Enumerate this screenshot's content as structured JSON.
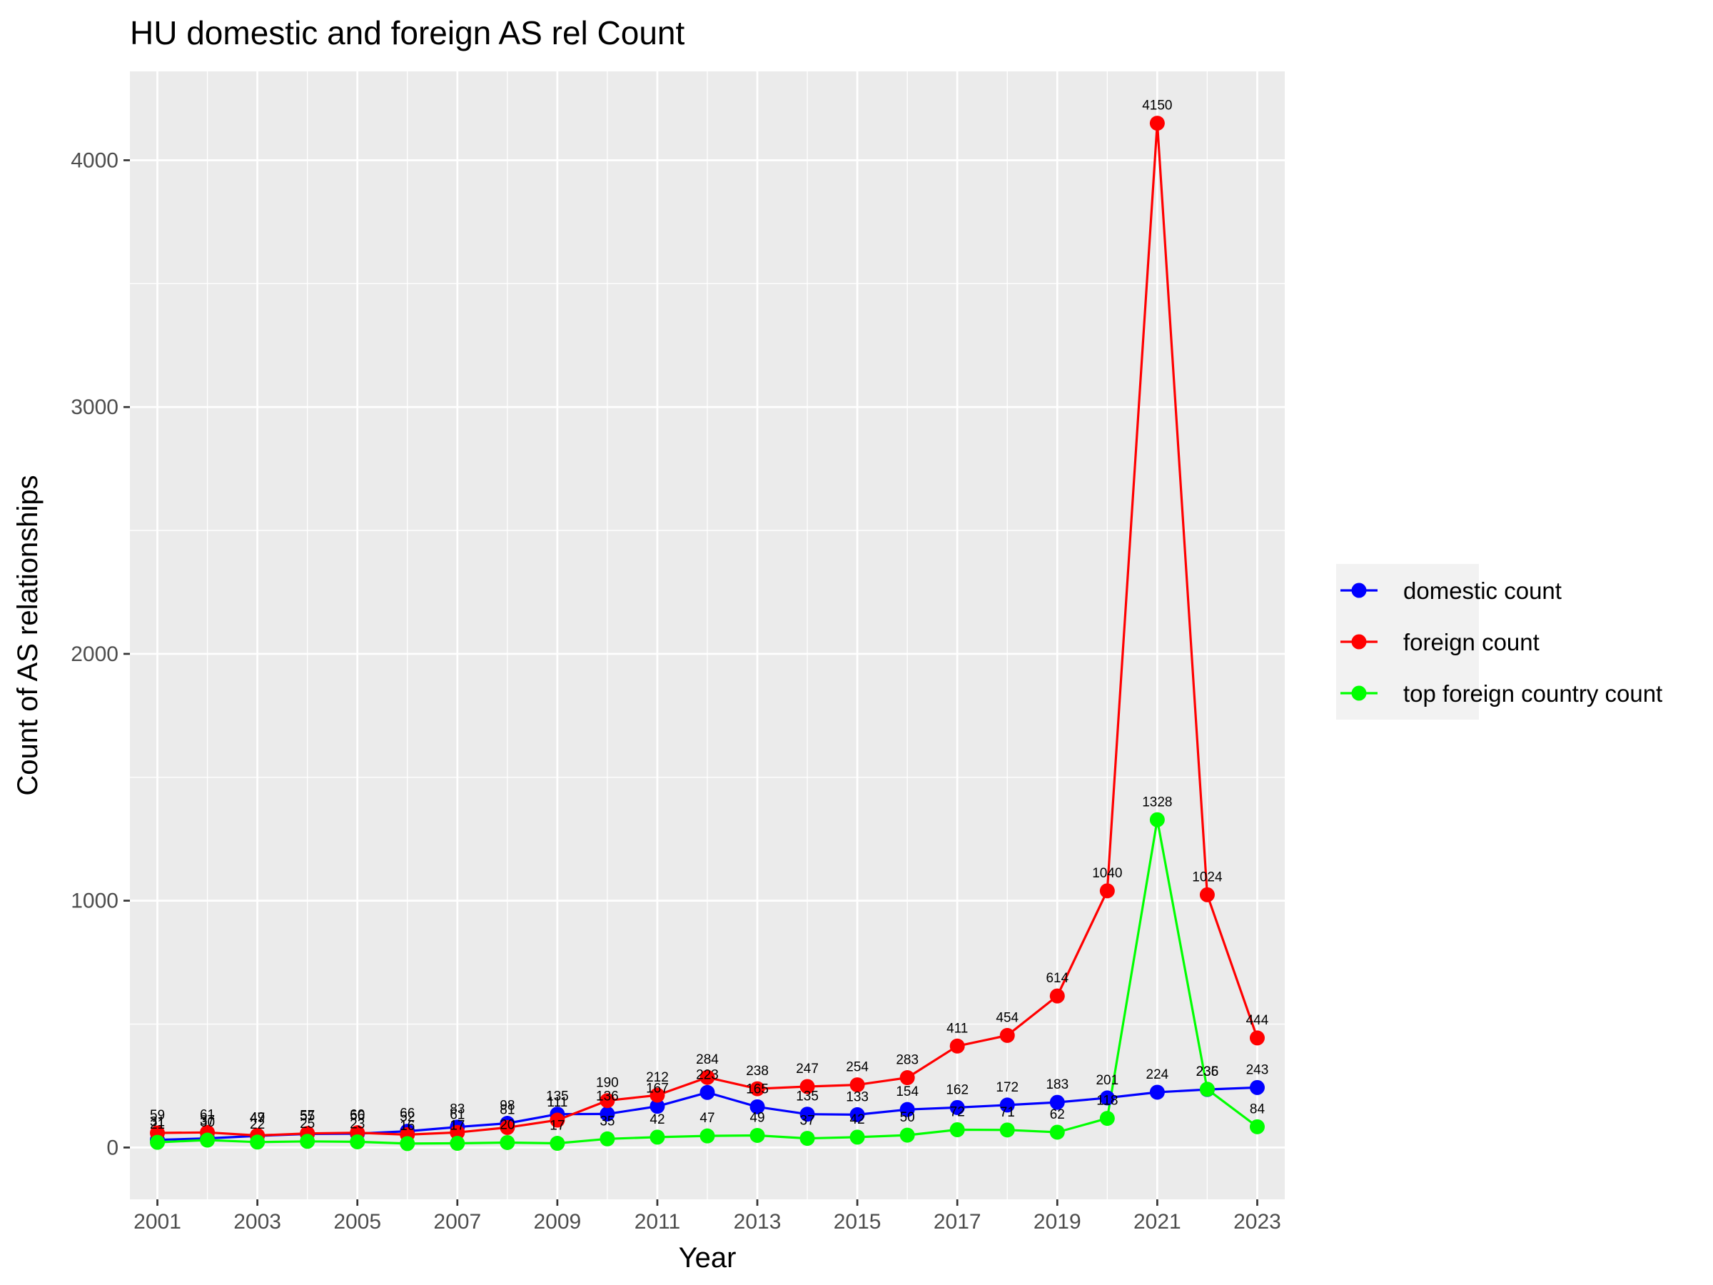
{
  "chart_data": {
    "type": "line",
    "title": "HU domestic and foreign AS rel Count",
    "xlabel": "Year",
    "ylabel": "Count of AS relationships",
    "x": [
      2001,
      2002,
      2003,
      2004,
      2005,
      2006,
      2007,
      2008,
      2009,
      2010,
      2011,
      2012,
      2013,
      2014,
      2015,
      2016,
      2017,
      2018,
      2019,
      2020,
      2021,
      2022,
      2023
    ],
    "x_ticks": [
      "2001",
      "2003",
      "2005",
      "2007",
      "2009",
      "2011",
      "2013",
      "2015",
      "2017",
      "2019",
      "2021",
      "2023"
    ],
    "y_ticks": [
      "0",
      "1000",
      "2000",
      "3000",
      "4000"
    ],
    "xlim": [
      2000.45,
      2023.55
    ],
    "ylim": [
      -210,
      4360
    ],
    "grid": true,
    "legend_position": "right",
    "series": [
      {
        "name": "domestic count",
        "color": "#0000FF",
        "values": [
          31,
          37,
          47,
          55,
          56,
          66,
          83,
          98,
          135,
          136,
          167,
          223,
          165,
          135,
          133,
          154,
          162,
          172,
          183,
          201,
          224,
          235,
          243
        ]
      },
      {
        "name": "foreign count",
        "color": "#FF0000",
        "values": [
          59,
          61,
          49,
          57,
          60,
          52,
          61,
          81,
          111,
          190,
          212,
          284,
          238,
          247,
          254,
          283,
          411,
          454,
          614,
          1040,
          4150,
          1024,
          444
        ]
      },
      {
        "name": "top foreign country count",
        "color": "#00FF00",
        "values": [
          21,
          30,
          22,
          25,
          23,
          16,
          17,
          20,
          17,
          35,
          42,
          47,
          49,
          37,
          42,
          50,
          72,
          71,
          62,
          118,
          1328,
          236,
          84
        ]
      }
    ]
  }
}
